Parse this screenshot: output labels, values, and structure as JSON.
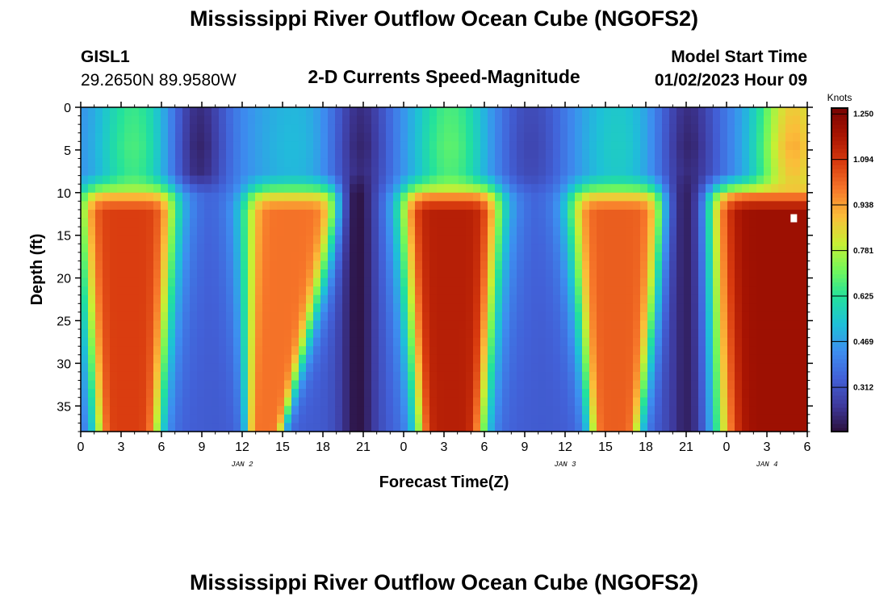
{
  "header": {
    "title": "Mississippi River Outflow Ocean Cube (NGOFS2)",
    "station_id": "GISL1",
    "station_coords": "29.2650N  89.9580W",
    "subtitle": "2-D Currents Speed-Magnitude",
    "run_label": "Model Start Time",
    "run_time": "01/02/2023 Hour 09"
  },
  "footer": {
    "title": "Mississippi River Outflow Ocean Cube (NGOFS2)"
  },
  "chart_data": {
    "type": "heatmap",
    "title": "2-D Currents Speed-Magnitude",
    "xlabel": "Forecast Time(Z)",
    "ylabel": "Depth (ft)",
    "xlim": [
      0,
      54
    ],
    "ylim": [
      38,
      0
    ],
    "x_ticks": [
      {
        "v": 0,
        "label": "0"
      },
      {
        "v": 3,
        "label": "3"
      },
      {
        "v": 6,
        "label": "6"
      },
      {
        "v": 9,
        "label": "9"
      },
      {
        "v": 12,
        "label": "12"
      },
      {
        "v": 15,
        "label": "15"
      },
      {
        "v": 18,
        "label": "18"
      },
      {
        "v": 21,
        "label": "21"
      },
      {
        "v": 24,
        "label": "0"
      },
      {
        "v": 27,
        "label": "3"
      },
      {
        "v": 30,
        "label": "6"
      },
      {
        "v": 33,
        "label": "9"
      },
      {
        "v": 36,
        "label": "12"
      },
      {
        "v": 39,
        "label": "15"
      },
      {
        "v": 42,
        "label": "18"
      },
      {
        "v": 45,
        "label": "21"
      },
      {
        "v": 48,
        "label": "0"
      },
      {
        "v": 51,
        "label": "3"
      },
      {
        "v": 54,
        "label": "6"
      }
    ],
    "day_labels": [
      {
        "v": 12,
        "label": "JAN 2"
      },
      {
        "v": 36,
        "label": "JAN 3"
      },
      {
        "v": 51,
        "label": "JAN 4"
      }
    ],
    "y_ticks": [
      0,
      5,
      10,
      15,
      20,
      25,
      30,
      35
    ],
    "colorbar": {
      "unit": "Knots",
      "min": 0.16,
      "max": 1.27,
      "tick_values": [
        1.25,
        1.094,
        0.938,
        0.781,
        0.625,
        0.469,
        0.312
      ],
      "tick_labels": [
        "1.250",
        "1.094",
        "0.938",
        "0.781",
        "0.625",
        "0.469",
        "0.312"
      ],
      "colors": [
        "#2b0f3a",
        "#3e3a9e",
        "#4261d8",
        "#3d8ef0",
        "#1ec0d8",
        "#22e19d",
        "#73f75a",
        "#c8ef34",
        "#fbbd39",
        "#f7772a",
        "#d83a0e",
        "#a81402",
        "#7a0403"
      ]
    },
    "surface_layer": {
      "depth_range_ft": [
        0,
        9
      ],
      "comment_free": true,
      "lows": [
        {
          "t": 8.7,
          "speed": 0.2,
          "width_h": 1.6
        },
        {
          "t": 20.7,
          "speed": 0.2,
          "width_h": 1.6
        },
        {
          "t": 33.5,
          "speed": 0.28,
          "width_h": 2.0
        },
        {
          "t": 45,
          "speed": 0.2,
          "width_h": 1.7
        }
      ],
      "highs": [
        {
          "t": 4,
          "speed": 0.66,
          "width_h": 2.0
        },
        {
          "t": 16,
          "speed": 0.52,
          "width_h": 2.5
        },
        {
          "t": 27.5,
          "speed": 0.68,
          "width_h": 2.0
        },
        {
          "t": 40,
          "speed": 0.56,
          "width_h": 2.5
        },
        {
          "t": 53,
          "speed": 0.9,
          "width_h": 2.0
        }
      ],
      "base_speed": 0.42
    },
    "deep_layer": {
      "depth_range_ft": [
        9,
        38
      ],
      "base_speed": 0.33,
      "highs": [
        {
          "t": 3.5,
          "speed": 1.08,
          "half_width_top_h": 3.6,
          "half_width_bottom_h": 2.3,
          "shift_bottom_h": 0
        },
        {
          "t": 16,
          "speed": 1.0,
          "half_width_top_h": 3.8,
          "half_width_bottom_h": 1.3,
          "shift_bottom_h": -2.3
        },
        {
          "t": 27.5,
          "speed": 1.15,
          "half_width_top_h": 3.7,
          "half_width_bottom_h": 2.4,
          "shift_bottom_h": 0
        },
        {
          "t": 40,
          "speed": 1.03,
          "half_width_top_h": 3.7,
          "half_width_bottom_h": 1.8,
          "shift_bottom_h": -0.3
        },
        {
          "t": 52,
          "speed": 1.2,
          "half_width_top_h": 5.5,
          "half_width_bottom_h": 4.5,
          "shift_bottom_h": 0
        }
      ],
      "lows": [
        {
          "t": 20.6,
          "speed": 0.17,
          "width_h": 1.0
        },
        {
          "t": 45,
          "speed": 0.2,
          "width_h": 1.1
        }
      ]
    },
    "marker": {
      "t": 53,
      "depth": 13,
      "color": "#ffffff"
    }
  }
}
